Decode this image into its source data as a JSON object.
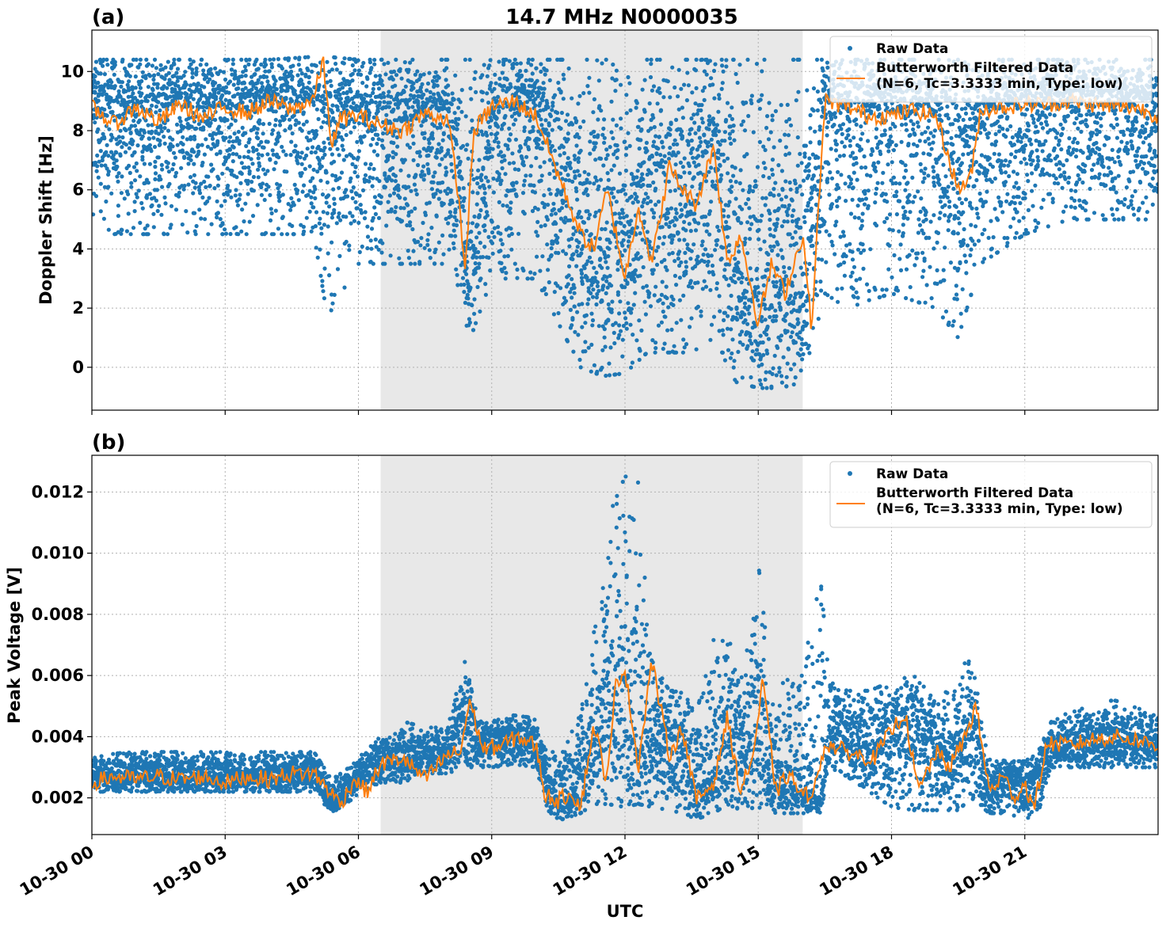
{
  "figure": {
    "title": "14.7 MHz N0000035",
    "xlabel": "UTC",
    "colors": {
      "raw": "#1f77b4",
      "filtered": "#ff7f0e",
      "shade": "#e8e8e8",
      "grid": "#b0b0b0"
    }
  },
  "chart_data": [
    {
      "type": "scatter",
      "panel_label": "(a)",
      "ylabel": "Doppler Shift [Hz]",
      "xlim": [
        0,
        24
      ],
      "ylim": [
        -1.45,
        11.4
      ],
      "yticks": [
        0,
        2,
        4,
        6,
        8,
        10
      ],
      "ytick_labels": [
        "0",
        "2",
        "4",
        "6",
        "8",
        "10"
      ],
      "xticks": [
        0,
        3,
        6,
        9,
        12,
        15,
        18,
        21
      ],
      "xtick_labels": [
        "10-30 00",
        "10-30 03",
        "10-30 06",
        "10-30 09",
        "10-30 12",
        "10-30 15",
        "10-30 18",
        "10-30 21"
      ],
      "grid": true,
      "shaded_span": [
        6.5,
        16.0
      ],
      "legend": {
        "placement": "top-right",
        "entries": [
          "Raw Data",
          "Butterworth Filtered Data\n(N=6, Tc=3.3333 min, Type: low)"
        ]
      },
      "series": [
        {
          "name": "Raw Data",
          "kind": "scatter",
          "profile_x": [
            0,
            1,
            2,
            3,
            4,
            5,
            5.3,
            6,
            7,
            8,
            8.3,
            8.5,
            9,
            10,
            10.5,
            11,
            11.5,
            12,
            12.5,
            13,
            13.5,
            14,
            14.5,
            15,
            15.5,
            16,
            16.5,
            17,
            18,
            19,
            19.5,
            20,
            21,
            22,
            23,
            24
          ],
          "profile_center": [
            9,
            8.7,
            8.8,
            8.7,
            8.9,
            8.9,
            8.2,
            8.3,
            8.3,
            8.4,
            6.0,
            3.0,
            8.4,
            8.7,
            6.5,
            4.5,
            4.0,
            4.5,
            6.5,
            6.3,
            5.5,
            7.0,
            3.5,
            2.0,
            3.5,
            2.5,
            9.0,
            8.7,
            8.6,
            8.5,
            6.5,
            8.7,
            8.8,
            8.9,
            8.8,
            8.8
          ],
          "profile_low": [
            4.5,
            4.5,
            4.5,
            4.5,
            4.5,
            4.5,
            1.7,
            3.5,
            3.5,
            3.5,
            2.5,
            0.9,
            3.0,
            3.0,
            1.5,
            0.0,
            -0.3,
            -0.2,
            0.5,
            0.5,
            0.5,
            1.0,
            -0.5,
            -0.7,
            -0.7,
            -0.5,
            2.5,
            2.0,
            2.5,
            2.0,
            1.0,
            3.5,
            4.5,
            5.0,
            5.0,
            5.0
          ],
          "profile_high": [
            10.4,
            10.4,
            10.4,
            10.4,
            10.4,
            10.5,
            10.5,
            10.4,
            10.4,
            10.4,
            10.4,
            10.4,
            10.4,
            10.4,
            10.4,
            10.4,
            10.4,
            10.4,
            10.4,
            10.4,
            10.4,
            10.4,
            10.4,
            10.4,
            10.4,
            10.4,
            10.4,
            10.4,
            10.4,
            10.4,
            10.4,
            10.4,
            10.4,
            10.4,
            10.4,
            10.4
          ]
        },
        {
          "name": "Butterworth Filtered Data\n(N=6, Tc=3.3333 min, Type: low)",
          "kind": "line",
          "x": [
            0,
            0.5,
            1,
            1.5,
            2,
            2.5,
            3,
            3.5,
            4,
            4.5,
            5,
            5.2,
            5.4,
            5.6,
            6,
            6.5,
            7,
            7.5,
            8,
            8.2,
            8.4,
            8.6,
            9,
            9.5,
            10,
            10.5,
            11,
            11.3,
            11.6,
            12,
            12.3,
            12.6,
            13,
            13.3,
            13.6,
            14,
            14.3,
            14.6,
            15,
            15.3,
            15.6,
            16,
            16.2,
            16.5,
            17,
            17.5,
            18,
            18.5,
            19,
            19.5,
            19.8,
            20,
            20.5,
            21,
            21.5,
            22,
            22.5,
            23,
            23.5,
            24
          ],
          "y": [
            8.8,
            8.2,
            8.8,
            8.3,
            8.9,
            8.4,
            8.8,
            8.6,
            9.0,
            8.7,
            9.1,
            10.4,
            7.5,
            8.4,
            8.5,
            8.2,
            8.0,
            8.6,
            8.4,
            6.5,
            3.3,
            8.0,
            8.8,
            9.0,
            8.5,
            6.5,
            4.5,
            4.0,
            6.0,
            3.0,
            5.5,
            3.5,
            6.8,
            6.0,
            5.5,
            7.5,
            3.5,
            4.5,
            1.5,
            3.5,
            2.5,
            4.5,
            1.3,
            9.0,
            8.8,
            8.5,
            8.5,
            8.7,
            8.5,
            6.0,
            6.5,
            8.7,
            8.8,
            8.9,
            8.9,
            9.0,
            8.9,
            8.8,
            8.8,
            8.5
          ]
        }
      ]
    },
    {
      "type": "scatter",
      "panel_label": "(b)",
      "ylabel": "Peak Voltage [V]",
      "xlim": [
        0,
        24
      ],
      "ylim": [
        0.0008,
        0.0132
      ],
      "yticks": [
        0.002,
        0.004,
        0.006,
        0.008,
        0.01,
        0.012
      ],
      "ytick_labels": [
        "0.002",
        "0.004",
        "0.006",
        "0.008",
        "0.010",
        "0.012"
      ],
      "xticks": [
        0,
        3,
        6,
        9,
        12,
        15,
        18,
        21
      ],
      "xtick_labels": [
        "10-30 00",
        "10-30 03",
        "10-30 06",
        "10-30 09",
        "10-30 12",
        "10-30 15",
        "10-30 18",
        "10-30 21"
      ],
      "grid": true,
      "shaded_span": [
        6.5,
        16.0
      ],
      "legend": {
        "placement": "top-right",
        "entries": [
          "Raw Data",
          "Butterworth Filtered Data\n(N=6, Tc=3.3333 min, Type: low)"
        ]
      },
      "series": [
        {
          "name": "Raw Data",
          "kind": "scatter",
          "profile_x": [
            0,
            1,
            2,
            3,
            4,
            5,
            5.4,
            5.8,
            6.2,
            6.5,
            7,
            7.5,
            8,
            8.4,
            8.7,
            9,
            9.5,
            10,
            10.3,
            10.6,
            11,
            11.3,
            11.6,
            12,
            12.3,
            12.6,
            13,
            13.3,
            13.6,
            14,
            14.3,
            14.6,
            15,
            15.3,
            15.6,
            16,
            16.4,
            16.6,
            17,
            17.5,
            18,
            18.5,
            19,
            19.5,
            19.8,
            20.2,
            20.6,
            21,
            21.3,
            21.6,
            22,
            23,
            24
          ],
          "profile_center": [
            0.0027,
            0.0027,
            0.0027,
            0.0027,
            0.0028,
            0.0028,
            0.0018,
            0.0024,
            0.003,
            0.0032,
            0.0033,
            0.0035,
            0.0035,
            0.005,
            0.0037,
            0.0038,
            0.0039,
            0.0038,
            0.0022,
            0.0018,
            0.0025,
            0.004,
            0.0055,
            0.005,
            0.004,
            0.004,
            0.0035,
            0.0035,
            0.0022,
            0.0028,
            0.0038,
            0.0035,
            0.0045,
            0.0025,
            0.0025,
            0.0022,
            0.002,
            0.004,
            0.0038,
            0.0035,
            0.0042,
            0.0045,
            0.0035,
            0.0035,
            0.0045,
            0.0022,
            0.0028,
            0.0022,
            0.0028,
            0.0036,
            0.0037,
            0.0039,
            0.0038
          ],
          "profile_low": [
            0.0022,
            0.0022,
            0.0022,
            0.0022,
            0.0022,
            0.0022,
            0.0015,
            0.0019,
            0.0023,
            0.0025,
            0.0025,
            0.0028,
            0.0028,
            0.003,
            0.003,
            0.003,
            0.0031,
            0.003,
            0.0014,
            0.0013,
            0.0015,
            0.0018,
            0.0018,
            0.0017,
            0.0018,
            0.0017,
            0.0016,
            0.0015,
            0.0013,
            0.0015,
            0.0018,
            0.0016,
            0.0017,
            0.0015,
            0.0015,
            0.0015,
            0.0015,
            0.003,
            0.0027,
            0.0022,
            0.0017,
            0.0016,
            0.0016,
            0.0016,
            0.002,
            0.0015,
            0.0015,
            0.0013,
            0.0015,
            0.003,
            0.003,
            0.003,
            0.003
          ],
          "profile_high": [
            0.0034,
            0.0035,
            0.0035,
            0.0035,
            0.0035,
            0.0035,
            0.0026,
            0.003,
            0.0036,
            0.004,
            0.0045,
            0.0043,
            0.0043,
            0.0065,
            0.0045,
            0.0045,
            0.0047,
            0.0046,
            0.0035,
            0.0035,
            0.0048,
            0.0078,
            0.0111,
            0.0125,
            0.0126,
            0.0065,
            0.0055,
            0.0055,
            0.0047,
            0.0072,
            0.0072,
            0.0065,
            0.0097,
            0.0055,
            0.0058,
            0.0062,
            0.0092,
            0.0058,
            0.0055,
            0.0055,
            0.0058,
            0.006,
            0.0052,
            0.0063,
            0.0065,
            0.0033,
            0.0032,
            0.0032,
            0.0035,
            0.0045,
            0.0048,
            0.0052,
            0.0047
          ]
        },
        {
          "name": "Butterworth Filtered Data\n(N=6, Tc=3.3333 min, Type: low)",
          "kind": "line",
          "x": [
            0,
            0.5,
            1,
            1.5,
            2,
            2.5,
            3,
            3.5,
            4,
            4.5,
            5,
            5.3,
            5.6,
            5.9,
            6.2,
            6.5,
            7,
            7.5,
            8,
            8.3,
            8.5,
            8.8,
            9.2,
            9.6,
            10,
            10.2,
            10.5,
            10.8,
            11,
            11.3,
            11.6,
            11.8,
            12,
            12.3,
            12.6,
            13,
            13.3,
            13.6,
            14,
            14.3,
            14.6,
            14.9,
            15.1,
            15.4,
            15.7,
            16,
            16.3,
            16.5,
            16.8,
            17.2,
            17.6,
            18,
            18.3,
            18.6,
            19,
            19.3,
            19.6,
            19.9,
            20.2,
            20.5,
            20.8,
            21,
            21.2,
            21.5,
            22,
            22.5,
            23,
            23.5,
            24
          ],
          "y": [
            0.0025,
            0.0027,
            0.0026,
            0.0027,
            0.0026,
            0.0027,
            0.0025,
            0.0027,
            0.0026,
            0.0028,
            0.0028,
            0.0023,
            0.0018,
            0.0026,
            0.0022,
            0.0031,
            0.0033,
            0.0026,
            0.0034,
            0.0035,
            0.0052,
            0.0036,
            0.0037,
            0.004,
            0.0037,
            0.0021,
            0.0019,
            0.0022,
            0.0017,
            0.0044,
            0.0025,
            0.0058,
            0.0062,
            0.003,
            0.0065,
            0.0034,
            0.0043,
            0.0019,
            0.0025,
            0.0046,
            0.0022,
            0.0035,
            0.0058,
            0.0022,
            0.0028,
            0.002,
            0.0024,
            0.0038,
            0.0036,
            0.0034,
            0.0033,
            0.0042,
            0.0048,
            0.0022,
            0.0035,
            0.003,
            0.0038,
            0.005,
            0.0022,
            0.0027,
            0.002,
            0.0025,
            0.0016,
            0.0038,
            0.0037,
            0.0039,
            0.004,
            0.0039,
            0.0037
          ]
        }
      ]
    }
  ]
}
